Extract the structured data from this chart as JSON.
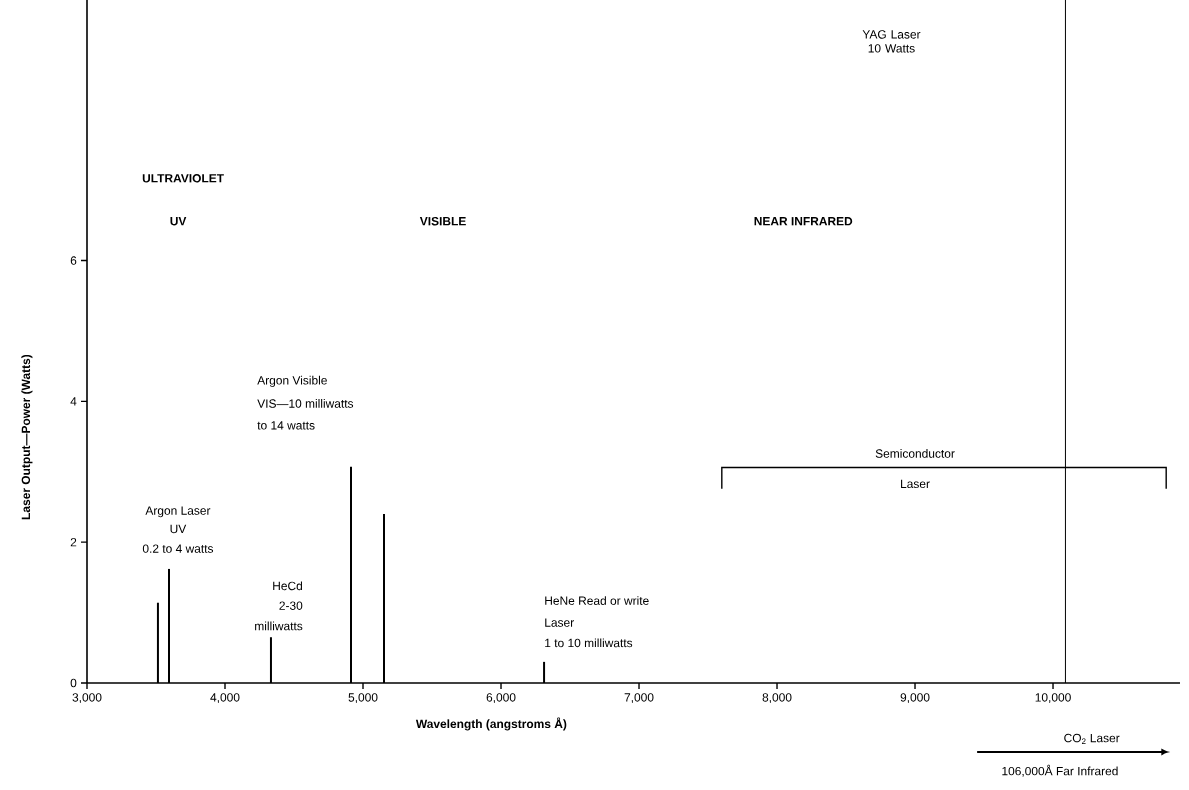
{
  "chart_data": {
    "type": "bar",
    "xlabel": "Wavelength (angstroms Å)",
    "ylabel": "Laser Output—Power (Watts)",
    "x": [
      3514,
      3594,
      4333,
      4913,
      5152,
      6312
    ],
    "values": [
      1.14,
      1.62,
      0.65,
      3.07,
      2.4,
      0.3
    ],
    "color": "#000000",
    "xlim": [
      3000,
      10920
    ],
    "ylim": [
      0,
      9.7
    ],
    "xticks": [
      {
        "value": 3000,
        "label": "3,000"
      },
      {
        "value": 4000,
        "label": "4,000"
      },
      {
        "value": 5000,
        "label": "5,000"
      },
      {
        "value": 6000,
        "label": "6,000"
      },
      {
        "value": 7000,
        "label": "7,000"
      },
      {
        "value": 8000,
        "label": "8,000"
      },
      {
        "value": 9000,
        "label": "9,000"
      },
      {
        "value": 10000,
        "label": "10,000"
      }
    ],
    "yticks": [
      0,
      2,
      4,
      6
    ],
    "ref_lines": [
      {
        "axis": "x",
        "value": 10090,
        "label": "YAG Laser 10 Watts"
      }
    ],
    "annotations": [
      "Argon Laser",
      "UV",
      "0.2 to 4 watts",
      "HeCd",
      "2-30",
      "milliwatts",
      "Argon Visible",
      "VIS—10 milliwatts",
      "to 14 watts",
      "HeNe Read or write",
      "Laser",
      "1 to 10 milliwatts",
      "ULTRAVIOLET",
      "UV",
      "VISIBLE",
      "NEAR INFRARED",
      "Semiconductor",
      "Laser",
      "CO$_{2}$ Laser",
      "106,000Å Far Infrared"
    ]
  }
}
